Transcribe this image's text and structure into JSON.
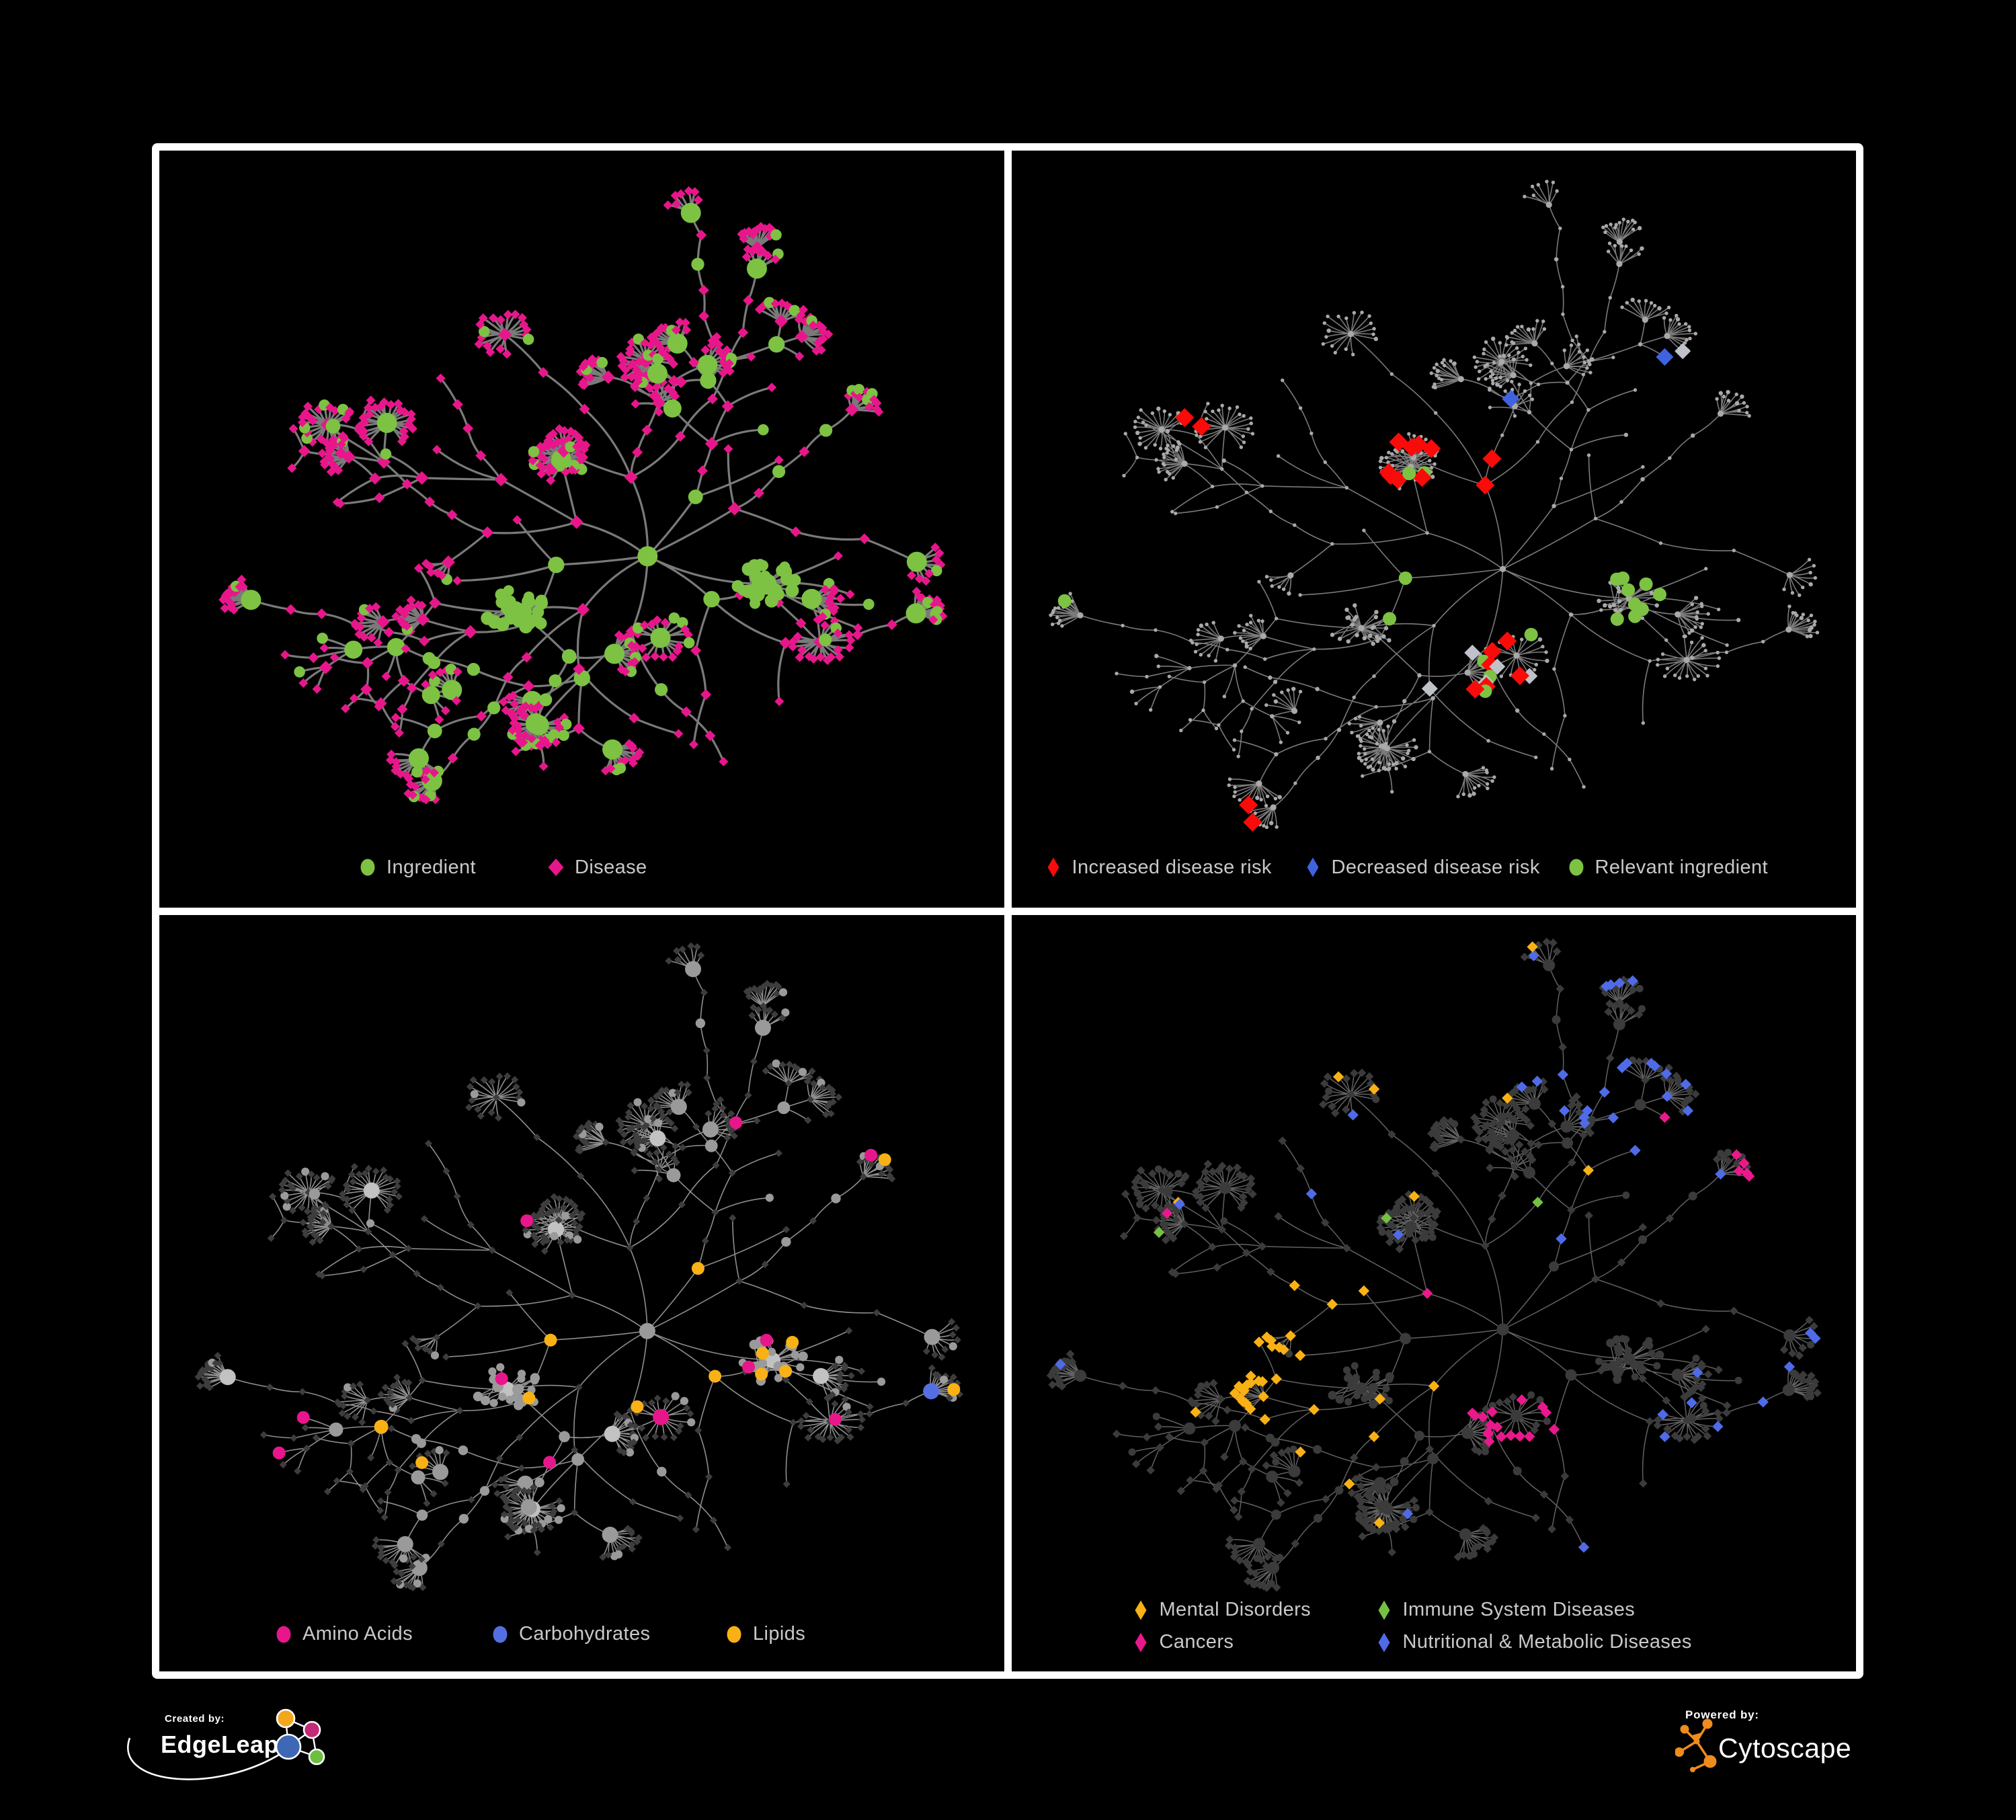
{
  "page": {
    "background": "#000000",
    "frame_color": "#ffffff"
  },
  "panels": [
    {
      "name": "ingredient-disease-network",
      "legend": [
        {
          "label": "Ingredient",
          "color": "#7dc242",
          "shape": "ellipse"
        },
        {
          "label": "Disease",
          "color": "#e8168b",
          "shape": "diamond"
        }
      ],
      "palette": {
        "ingredient": "#7dc242",
        "disease": "#e8168b",
        "edge": "#7a7a7a"
      }
    },
    {
      "name": "disease-risk-network",
      "legend": [
        {
          "label": "Increased disease risk",
          "color": "#fb0a0a",
          "shape": "diamond-slim"
        },
        {
          "label": "Decreased disease risk",
          "color": "#3f62df",
          "shape": "diamond-slim"
        },
        {
          "label": "Relevant ingredient",
          "color": "#7dc242",
          "shape": "ellipse"
        }
      ],
      "palette": {
        "base": "#a9a9a9",
        "red": "#fb0a0a",
        "blue": "#3f62df",
        "gray": "#bfc3c9",
        "green": "#7dc242",
        "edge": "#7a7a7a"
      }
    },
    {
      "name": "nutrient-class-network",
      "legend": [
        {
          "label": "Amino Acids",
          "color": "#e8168b",
          "shape": "ellipse"
        },
        {
          "label": "Carbohydrates",
          "color": "#5470e0",
          "shape": "ellipse"
        },
        {
          "label": "Lipids",
          "color": "#f9b115",
          "shape": "ellipse"
        }
      ],
      "palette": {
        "ingredient": "#9a9a9a",
        "ingredient_hub": "#c2c2c2",
        "disease": "#3d3d3d",
        "amino": "#e8168b",
        "carb": "#5470e0",
        "lipid": "#f9b115",
        "edge": "#8e8e8e"
      }
    },
    {
      "name": "disease-class-network",
      "legend": [
        {
          "label": "Mental Disorders",
          "color": "#f9b115",
          "shape": "diamond-slim"
        },
        {
          "label": "Immune System Diseases",
          "color": "#76c043",
          "shape": "diamond-slim"
        },
        {
          "label": "Cancers",
          "color": "#e9198c",
          "shape": "diamond-slim"
        },
        {
          "label": "Nutritional & Metabolic Diseases",
          "color": "#4f6be8",
          "shape": "diamond-slim"
        }
      ],
      "palette": {
        "base": "#3b3b3b",
        "mental": "#f9b115",
        "immune": "#76c043",
        "cancer": "#e9198c",
        "nutri": "#4f6be8",
        "edge": "#616161"
      }
    }
  ],
  "footer": {
    "created_by_label": "Created by:",
    "created_by_brand": "EdgeLeap",
    "powered_by_label": "Powered by:",
    "powered_by_brand": "Cytoscape",
    "edgeleap_node_colors": [
      "#f2a71c",
      "#c22a77",
      "#3e68b5",
      "#6cbf3f"
    ],
    "cytoscape_color": "#ef8c1e"
  }
}
